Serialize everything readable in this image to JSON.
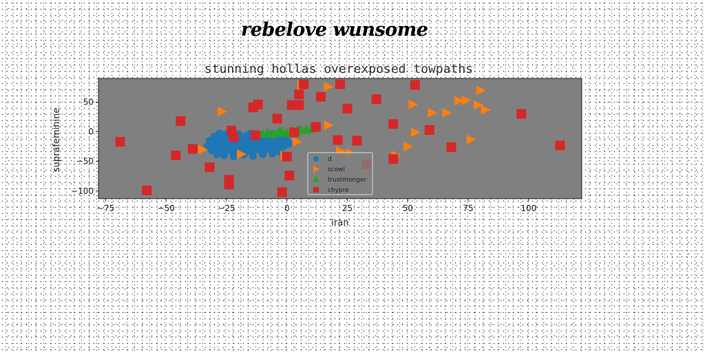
{
  "figure": {
    "title": "rebelove wunsome"
  },
  "chart_data": {
    "type": "scatter",
    "title": "stunning hollas overexposed towpaths",
    "xlabel": "iran",
    "ylabel": "suprafeminine",
    "xlim": [
      -78,
      122
    ],
    "ylim": [
      -113,
      90
    ],
    "xticks": [
      -75,
      -50,
      -25,
      0,
      25,
      50,
      75,
      100
    ],
    "yticks": [
      -100,
      -50,
      0,
      50
    ],
    "grid": false,
    "legend_position": "lower-center",
    "plot_background": "#808080",
    "series": [
      {
        "name": "d",
        "marker": "circle",
        "color": "#1f77b4",
        "points": [
          [
            -33,
            -25
          ],
          [
            -32,
            -15
          ],
          [
            -31,
            -32
          ],
          [
            -30,
            -20
          ],
          [
            -30,
            -8
          ],
          [
            -29,
            -28
          ],
          [
            -28,
            -12
          ],
          [
            -28,
            -3
          ],
          [
            -27,
            -35
          ],
          [
            -27,
            -22
          ],
          [
            -26,
            -16
          ],
          [
            -26,
            -5
          ],
          [
            -25,
            -30
          ],
          [
            -25,
            -10
          ],
          [
            -24,
            -25
          ],
          [
            -24,
            -2
          ],
          [
            -23,
            -18
          ],
          [
            -23,
            -33
          ],
          [
            -22,
            -8
          ],
          [
            -22,
            -27
          ],
          [
            -21,
            -14
          ],
          [
            -21,
            -36
          ],
          [
            -20,
            -22
          ],
          [
            -20,
            -4
          ],
          [
            -19,
            -30
          ],
          [
            -19,
            -12
          ],
          [
            -18,
            -17
          ],
          [
            -18,
            -26
          ],
          [
            -17,
            -7
          ],
          [
            -17,
            -35
          ],
          [
            -16,
            -20
          ],
          [
            -16,
            -13
          ],
          [
            -15,
            -28
          ],
          [
            -15,
            -3
          ],
          [
            -14,
            -24
          ],
          [
            -14,
            -33
          ],
          [
            -13,
            -15
          ],
          [
            -13,
            -10
          ],
          [
            -12,
            -30
          ],
          [
            -12,
            -21
          ],
          [
            -11,
            -6
          ],
          [
            -11,
            -26
          ],
          [
            -10,
            -18
          ],
          [
            -10,
            -35
          ],
          [
            -9,
            -12
          ],
          [
            -9,
            -24
          ],
          [
            -8,
            -29
          ],
          [
            -8,
            -8
          ],
          [
            -7,
            -20
          ],
          [
            -7,
            -14
          ],
          [
            -6,
            -32
          ],
          [
            -6,
            -4
          ],
          [
            -5,
            -25
          ],
          [
            -5,
            -16
          ],
          [
            -4,
            -10
          ],
          [
            -4,
            -22
          ],
          [
            -3,
            -28
          ],
          [
            -3,
            -6
          ],
          [
            -2,
            -18
          ],
          [
            -2,
            -13
          ],
          [
            -1,
            -24
          ],
          [
            -1,
            -9
          ],
          [
            0,
            -15
          ],
          [
            1,
            -20
          ],
          [
            -29,
            -38
          ],
          [
            -26,
            -40
          ],
          [
            -22,
            -42
          ],
          [
            -18,
            -39
          ],
          [
            -14,
            -41
          ],
          [
            -10,
            -38
          ],
          [
            -6,
            -37
          ],
          [
            -3,
            -34
          ],
          [
            -20,
            -29
          ],
          [
            -24,
            -13
          ],
          [
            -27,
            -26
          ],
          [
            -16,
            -31
          ],
          [
            -12,
            -17
          ],
          [
            -8,
            -22
          ],
          [
            -31,
            -18
          ],
          [
            -19,
            -24
          ]
        ]
      },
      {
        "name": "scowl",
        "marker": "triangle-right",
        "color": "#ff7f0e",
        "points": [
          [
            -27,
            34
          ],
          [
            -19,
            -38
          ],
          [
            -35,
            -30
          ],
          [
            -1,
            -40
          ],
          [
            4,
            -17
          ],
          [
            6,
            78
          ],
          [
            17,
            76
          ],
          [
            17,
            11
          ],
          [
            22,
            -33
          ],
          [
            26,
            -36
          ],
          [
            45,
            -40
          ],
          [
            50,
            -25
          ],
          [
            52,
            46
          ],
          [
            53,
            -1
          ],
          [
            60,
            32
          ],
          [
            66,
            32
          ],
          [
            71,
            52
          ],
          [
            74,
            53
          ],
          [
            76,
            -13
          ],
          [
            79,
            45
          ],
          [
            80,
            70
          ],
          [
            82,
            37
          ]
        ]
      },
      {
        "name": "trustmonger",
        "marker": "triangle-up",
        "color": "#2ca02c",
        "points": [
          [
            -10,
            -3
          ],
          [
            -8,
            -1
          ],
          [
            -6,
            -4
          ],
          [
            -4,
            -2
          ],
          [
            -2,
            0
          ],
          [
            0,
            -1
          ],
          [
            2,
            2
          ],
          [
            4,
            1
          ],
          [
            6,
            3
          ],
          [
            8,
            4
          ],
          [
            10,
            5
          ],
          [
            -3,
            1
          ],
          [
            1,
            -3
          ],
          [
            5,
            4
          ]
        ]
      },
      {
        "name": "chypre",
        "marker": "square",
        "color": "#d62728",
        "points": [
          [
            -69,
            -17
          ],
          [
            -58,
            -99
          ],
          [
            -46,
            -40
          ],
          [
            -44,
            18
          ],
          [
            -39,
            -29
          ],
          [
            -32,
            -60
          ],
          [
            -24,
            -81
          ],
          [
            -24,
            -89
          ],
          [
            -23,
            2
          ],
          [
            -22,
            -9
          ],
          [
            -14,
            41
          ],
          [
            -13,
            -6
          ],
          [
            -12,
            46
          ],
          [
            -4,
            22
          ],
          [
            -2,
            -102
          ],
          [
            0,
            -42
          ],
          [
            1,
            -74
          ],
          [
            2,
            45
          ],
          [
            3,
            -1
          ],
          [
            5,
            45
          ],
          [
            5,
            63
          ],
          [
            7,
            80
          ],
          [
            12,
            8
          ],
          [
            14,
            59
          ],
          [
            21,
            -14
          ],
          [
            22,
            80
          ],
          [
            25,
            39
          ],
          [
            29,
            -15
          ],
          [
            33,
            -55
          ],
          [
            37,
            55
          ],
          [
            44,
            13
          ],
          [
            44,
            -46
          ],
          [
            53,
            79
          ],
          [
            59,
            3
          ],
          [
            68,
            -26
          ],
          [
            97,
            30
          ],
          [
            113,
            -23
          ]
        ]
      }
    ]
  }
}
